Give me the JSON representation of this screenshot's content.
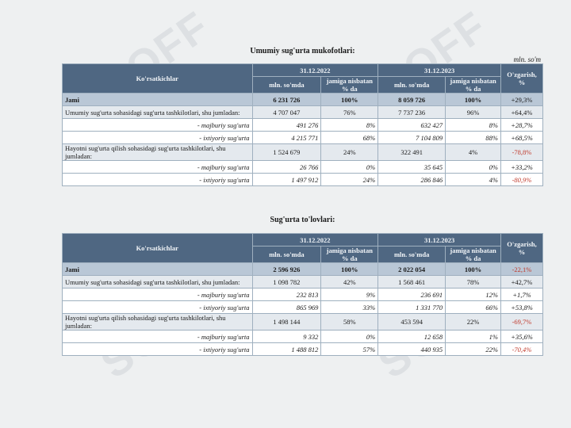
{
  "watermark": "SOFF",
  "unit_note": "mln. so'm",
  "columns": {
    "indicator": "Ko'rsatkichlar",
    "period1": "31.12.2022",
    "period2": "31.12.2023",
    "amount": "mln. so'mda",
    "share": "jamiga nisbatan % da",
    "change": "O'zgarish, %"
  },
  "tables": [
    {
      "title": "Umumiy sug'urta mukofotlari:",
      "rows": [
        {
          "type": "jami",
          "label": "Jami",
          "v1": "6 231 726",
          "s1": "100%",
          "v2": "8 059 726",
          "s2": "100%",
          "chg": "+29,3%",
          "neg": false
        },
        {
          "type": "grp",
          "label": "Umumiy sug'urta sohasidagi sug'urta tashkilotlari, shu jumladan:",
          "v1": "4 707 047",
          "s1": "76%",
          "v2": "7 737 236",
          "s2": "96%",
          "chg": "+64,4%",
          "neg": false
        },
        {
          "type": "sub",
          "label": "- majburiy sug'urta",
          "v1": "491 276",
          "s1": "8%",
          "v2": "632 427",
          "s2": "8%",
          "chg": "+28,7%",
          "neg": false
        },
        {
          "type": "sub",
          "label": "- ixtiyoriy sug'urta",
          "v1": "4 215 771",
          "s1": "68%",
          "v2": "7 104 809",
          "s2": "88%",
          "chg": "+68,5%",
          "neg": false
        },
        {
          "type": "grp",
          "label": "Hayotni sug'urta qilish sohasidagi sug'urta tashkilotlari, shu jumladan:",
          "v1": "1 524 679",
          "s1": "24%",
          "v2": "322 491",
          "s2": "4%",
          "chg": "-78,8%",
          "neg": true
        },
        {
          "type": "sub",
          "label": "- majburiy sug'urta",
          "v1": "26 766",
          "s1": "0%",
          "v2": "35 645",
          "s2": "0%",
          "chg": "+33,2%",
          "neg": false
        },
        {
          "type": "sub",
          "label": "- ixtiyoriy sug'urta",
          "v1": "1 497 912",
          "s1": "24%",
          "v2": "286 846",
          "s2": "4%",
          "chg": "-80,9%",
          "neg": true
        }
      ]
    },
    {
      "title": "Sug'urta to'lovlari:",
      "rows": [
        {
          "type": "jami",
          "label": "Jami",
          "v1": "2 596 926",
          "s1": "100%",
          "v2": "2 022 054",
          "s2": "100%",
          "chg": "-22,1%",
          "neg": true
        },
        {
          "type": "grp",
          "label": "Umumiy sug'urta sohasidagi sug'urta tashkilotlari, shu jumladan:",
          "v1": "1 098 782",
          "s1": "42%",
          "v2": "1 568 461",
          "s2": "78%",
          "chg": "+42,7%",
          "neg": false
        },
        {
          "type": "sub",
          "label": "- majburiy sug'urta",
          "v1": "232 813",
          "s1": "9%",
          "v2": "236 691",
          "s2": "12%",
          "chg": "+1,7%",
          "neg": false
        },
        {
          "type": "sub",
          "label": "- ixtiyoriy sug'urta",
          "v1": "865 969",
          "s1": "33%",
          "v2": "1 331 770",
          "s2": "66%",
          "chg": "+53,8%",
          "neg": false
        },
        {
          "type": "grp",
          "label": "Hayotni sug'urta qilish sohasidagi sug'urta tashkilotlari, shu jumladan:",
          "v1": "1 498 144",
          "s1": "58%",
          "v2": "453 594",
          "s2": "22%",
          "chg": "-69,7%",
          "neg": true
        },
        {
          "type": "sub",
          "label": "- majburiy sug'urta",
          "v1": "9 332",
          "s1": "0%",
          "v2": "12 658",
          "s2": "1%",
          "chg": "+35,6%",
          "neg": false
        },
        {
          "type": "sub",
          "label": "- ixtiyoriy sug'urta",
          "v1": "1 488 812",
          "s1": "57%",
          "v2": "440 935",
          "s2": "22%",
          "chg": "-70,4%",
          "neg": true
        }
      ]
    }
  ]
}
